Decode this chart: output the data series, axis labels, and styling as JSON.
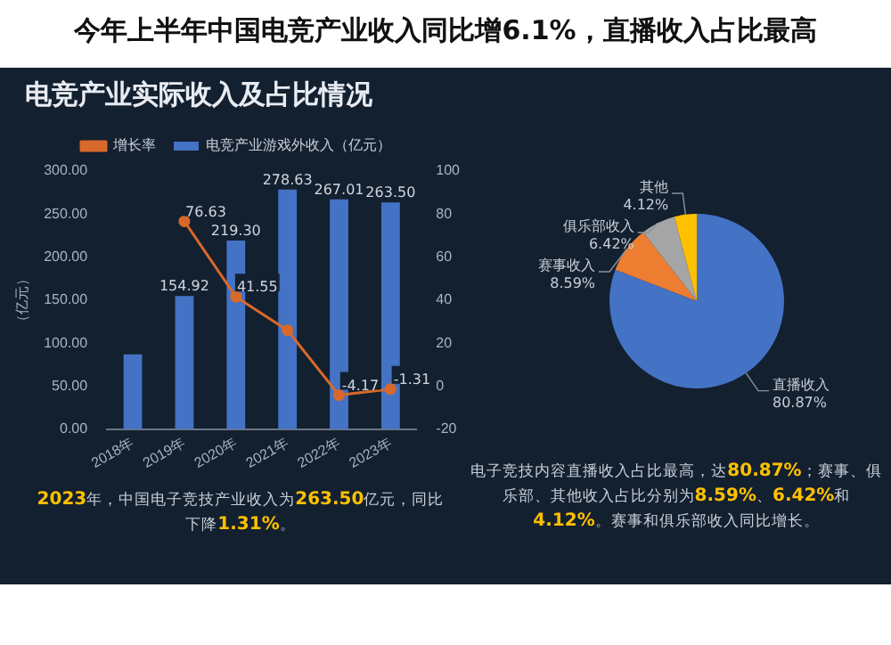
{
  "chart_data": [
    {
      "type": "bar",
      "title": "电竞产业实际收入及占比情况",
      "subtitle": "今年上半年中国电竞产业收入同比增6.1%，直播收入占比最高",
      "ylabel": "（亿元）",
      "categories": [
        "2018年",
        "2019年",
        "2020年",
        "2021年",
        "2022年",
        "2023年"
      ],
      "series": [
        {
          "name": "电竞产业游戏外收入（亿元）",
          "type": "bar",
          "color": "#4472c4",
          "values": [
            87,
            154.92,
            219.3,
            278.63,
            267.01,
            263.5
          ],
          "value_labels": [
            null,
            "154.92",
            "219.30",
            "278.63",
            "267.01",
            "263.50"
          ]
        },
        {
          "name": "增长率",
          "type": "line",
          "axis": "y2",
          "color": "#d9692a",
          "marker": "circle",
          "values": [
            null,
            76.63,
            41.55,
            26,
            -4.17,
            -1.31
          ],
          "value_labels": [
            null,
            "76.63",
            "41.55",
            null,
            "-4.17",
            "-1.31"
          ]
        }
      ],
      "ylim": [
        0,
        300
      ],
      "yticks": [
        {
          "value": 0,
          "label": "0.00"
        },
        {
          "value": 50,
          "label": "50.00"
        },
        {
          "value": 100,
          "label": "100.00"
        },
        {
          "value": 150,
          "label": "150.00"
        },
        {
          "value": 200,
          "label": "200.00"
        },
        {
          "value": 250,
          "label": "250.00"
        },
        {
          "value": 300,
          "label": "300.00"
        }
      ],
      "y2lim": [
        -20,
        100
      ],
      "y2ticks": [
        -20,
        0,
        20,
        40,
        60,
        80,
        100
      ],
      "legend": "top",
      "grid": false,
      "annotations": [
        "2023年，中国电子竞技产业收入为263.50亿元，同比下降1.31%。"
      ]
    },
    {
      "type": "pie",
      "categories": [
        "直播收入",
        "赛事收入",
        "俱乐部收入",
        "其他"
      ],
      "values": [
        80.87,
        8.59,
        6.42,
        4.12
      ],
      "colors": [
        "#4472c4",
        "#ed7d31",
        "#a5a5a5",
        "#ffc000"
      ],
      "value_labels": [
        "80.87%",
        "8.59%",
        "6.42%",
        "4.12%"
      ],
      "legend": false,
      "annotations": [
        "电子竞技内容直播收入占比最高，达80.87%；赛事、俱乐部、其他收入占比分别为8.59%、6.42%和4.12%。赛事和俱乐部收入同比增长。"
      ]
    }
  ]
}
